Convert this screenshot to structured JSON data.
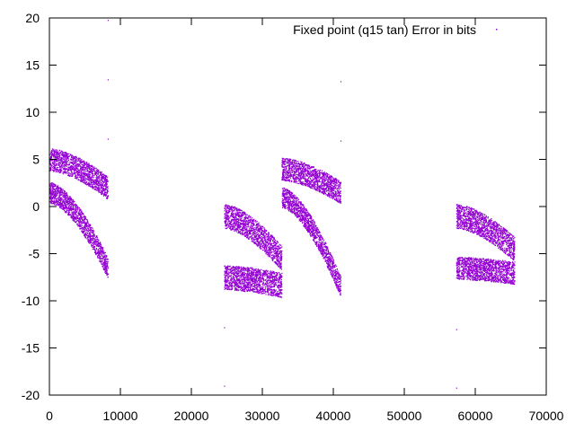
{
  "chart_data": {
    "type": "scatter",
    "title": "",
    "xlabel": "",
    "ylabel": "",
    "xlim": [
      0,
      70000
    ],
    "ylim": [
      -20,
      20
    ],
    "xticks": [
      0,
      10000,
      20000,
      30000,
      40000,
      50000,
      60000,
      70000
    ],
    "yticks": [
      -20,
      -15,
      -10,
      -5,
      0,
      5,
      10,
      15,
      20
    ],
    "grid": false,
    "legend_position": "top-right",
    "series": [
      {
        "name": "Fixed point (q15 tan) Error in bits",
        "color": "#9400d3",
        "clusters": [
          {
            "x_start": 0,
            "x_end": 8200,
            "bands": [
              {
                "y_start": 5.0,
                "y_end": 2.0,
                "halfwidth": 1.2
              },
              {
                "y_start": 1.5,
                "y_end": -6.5,
                "halfwidth": 1.1
              }
            ]
          },
          {
            "x_start": 24600,
            "x_end": 32700,
            "bands": [
              {
                "y_start": -1.0,
                "y_end": -5.5,
                "halfwidth": 1.3
              },
              {
                "y_start": -7.5,
                "y_end": -8.3,
                "halfwidth": 1.3
              }
            ]
          },
          {
            "x_start": 32700,
            "x_end": 41000,
            "bands": [
              {
                "y_start": 4.0,
                "y_end": 1.5,
                "halfwidth": 1.2
              },
              {
                "y_start": 1.0,
                "y_end": -8.5,
                "halfwidth": 1.1
              }
            ]
          },
          {
            "x_start": 57300,
            "x_end": 65500,
            "bands": [
              {
                "y_start": -1.0,
                "y_end": -4.5,
                "halfwidth": 1.3
              },
              {
                "y_start": -6.5,
                "y_end": -7.0,
                "halfwidth": 1.2
              }
            ]
          }
        ],
        "outliers": [
          {
            "x": 8200,
            "y": 19.8
          },
          {
            "x": 8200,
            "y": 13.5
          },
          {
            "x": 8200,
            "y": 7.2
          },
          {
            "x": 24600,
            "y": -12.8
          },
          {
            "x": 24600,
            "y": -19.0
          },
          {
            "x": 41000,
            "y": 13.3
          },
          {
            "x": 41000,
            "y": 7.0
          },
          {
            "x": 57300,
            "y": -13.0
          },
          {
            "x": 57300,
            "y": -19.2
          }
        ]
      }
    ]
  }
}
